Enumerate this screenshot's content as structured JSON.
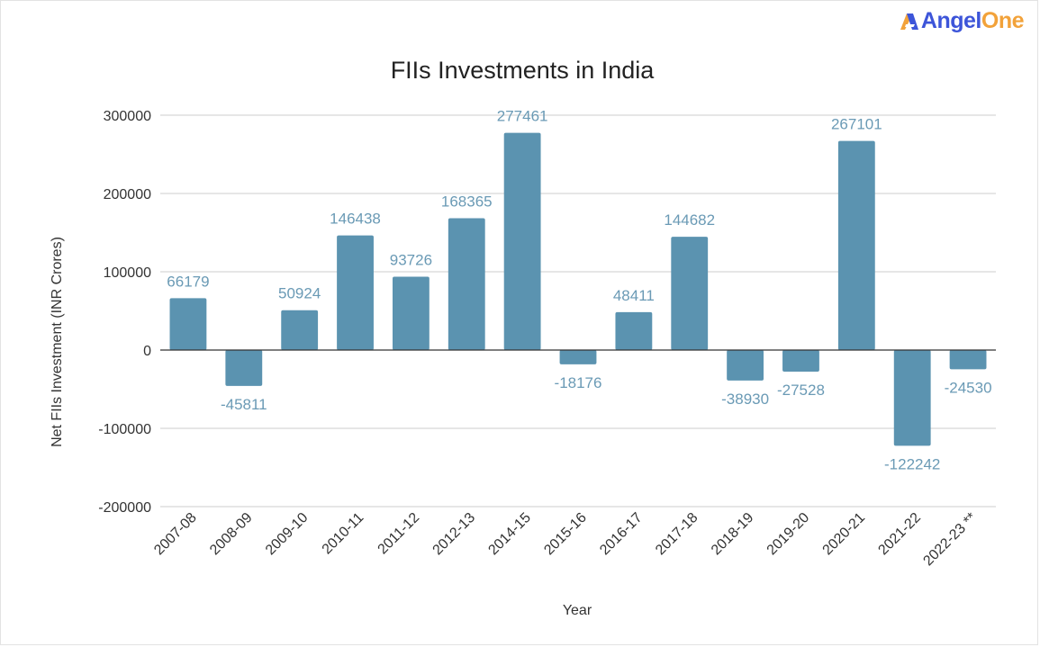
{
  "brand": {
    "name_part1": "Angel",
    "name_part2": "One",
    "icon": "angelone-logo-icon",
    "colors": {
      "primary": "#3d55d9",
      "accent": "#f2a23a"
    }
  },
  "chart_data": {
    "type": "bar",
    "title": "FIIs Investments in India",
    "xlabel": "Year",
    "ylabel": "Net FIIs Investment (INR Crores)",
    "ylim": [
      -200000,
      300000
    ],
    "yticks": [
      300000,
      200000,
      100000,
      0,
      -100000,
      -200000
    ],
    "ytick_labels": [
      "300000",
      "200000",
      "100000",
      "0",
      "-100000",
      "-200000"
    ],
    "categories": [
      "2007-08",
      "2008-09",
      "2009-10",
      "2010-11",
      "2011-12",
      "2012-13",
      "2014-15",
      "2015-16",
      "2016-17",
      "2017-18",
      "2018-19",
      "2019-20",
      "2020-21",
      "2021-22",
      "2022-23 **"
    ],
    "values": [
      66179,
      -45811,
      50924,
      146438,
      93726,
      168365,
      277461,
      -18176,
      48411,
      144682,
      -38930,
      -27528,
      267101,
      -122242,
      -24530
    ],
    "data_labels": [
      "66179",
      "-45811",
      "50924",
      "146438",
      "93726",
      "168365",
      "277461",
      "-18176",
      "48411",
      "144682",
      "-38930",
      "-27528",
      "267101",
      "-122242",
      "-24530"
    ],
    "bar_color": "#5b93b0",
    "label_color": "#6a9ab5",
    "grid": true,
    "legend": "none"
  }
}
